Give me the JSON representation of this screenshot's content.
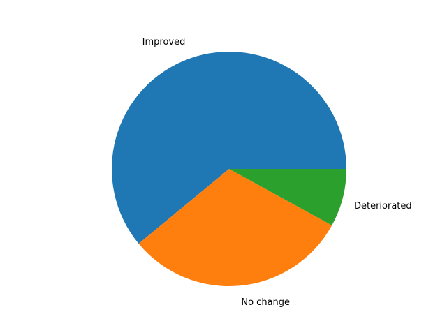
{
  "chart_data": {
    "type": "pie",
    "title": "",
    "labels": [
      "Improved",
      "No change",
      "Deteriorated"
    ],
    "values": [
      61,
      31,
      8
    ],
    "colors": [
      "#1f77b4",
      "#ff7f0e",
      "#2ca02c"
    ],
    "start_angle_deg": 0,
    "direction": "counterclockwise",
    "legend": "none"
  }
}
